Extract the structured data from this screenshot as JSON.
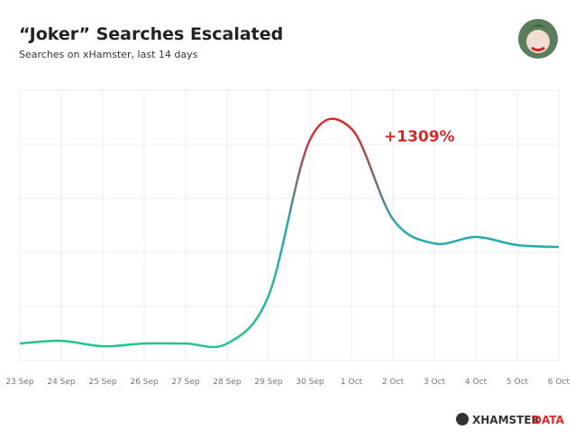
{
  "chart_data": {
    "type": "line",
    "title": "“Joker” Searches Escalated",
    "subtitle": "Searches on xHamster, last 14 days",
    "annotation": "+1309%",
    "brand": [
      "XHAMSTER",
      "DATA"
    ],
    "categories": [
      "23 Sep",
      "24 Sep",
      "25 Sep",
      "26 Sep",
      "27 Sep",
      "28 Sep",
      "29 Sep",
      "30 Sep",
      "1 Oct",
      "2 Oct",
      "3 Oct",
      "4 Oct",
      "5 Oct",
      "6 Oct"
    ],
    "values": [
      6.3,
      7.3,
      5.3,
      6.3,
      6.3,
      6.3,
      24,
      81.7,
      85.7,
      52.3,
      43.3,
      45.7,
      42.7,
      42
    ],
    "ylim": [
      0,
      100
    ],
    "grid": true,
    "color_scale": [
      "#d92a2a",
      "#2aa6b3",
      "#25c48c"
    ]
  }
}
